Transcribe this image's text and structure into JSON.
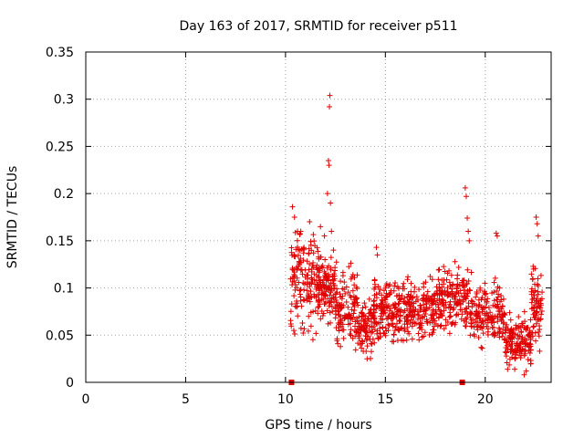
{
  "chart_data": {
    "type": "scatter",
    "title": "Day 163 of 2017, SRMTID for receiver p511",
    "xlabel": "GPS time / hours",
    "ylabel": "SRMTID / TECUs",
    "xlim": [
      0,
      23.3
    ],
    "ylim": [
      0,
      0.35
    ],
    "x_ticks": [
      "0",
      "5",
      "10",
      "15",
      "20"
    ],
    "y_ticks": [
      "0",
      "0.05",
      "0.1",
      "0.15",
      "0.2",
      "0.25",
      "0.3",
      "0.35"
    ],
    "grid": true,
    "marker": "+",
    "color": "#e00000",
    "series": [
      {
        "name": "SRMTID",
        "segments": [
          {
            "x_start": 10.25,
            "x_end": 11.6,
            "y_low": 0.04,
            "y_high": 0.17,
            "count": 150
          },
          {
            "x_start": 11.6,
            "x_end": 12.5,
            "y_low": 0.055,
            "y_high": 0.14,
            "count": 120
          },
          {
            "x_start": 12.5,
            "x_end": 13.6,
            "y_low": 0.035,
            "y_high": 0.12,
            "count": 120
          },
          {
            "x_start": 13.6,
            "x_end": 14.4,
            "y_low": 0.025,
            "y_high": 0.09,
            "count": 90
          },
          {
            "x_start": 14.4,
            "x_end": 15.6,
            "y_low": 0.035,
            "y_high": 0.11,
            "count": 140
          },
          {
            "x_start": 15.6,
            "x_end": 17.5,
            "y_low": 0.04,
            "y_high": 0.11,
            "count": 200
          },
          {
            "x_start": 17.5,
            "x_end": 19.2,
            "y_low": 0.05,
            "y_high": 0.125,
            "count": 170
          },
          {
            "x_start": 19.2,
            "x_end": 21.0,
            "y_low": 0.035,
            "y_high": 0.11,
            "count": 170
          },
          {
            "x_start": 21.0,
            "x_end": 22.3,
            "y_low": 0.01,
            "y_high": 0.07,
            "count": 150
          },
          {
            "x_start": 22.3,
            "x_end": 22.85,
            "y_low": 0.03,
            "y_high": 0.12,
            "count": 70
          }
        ],
        "peaks": [
          {
            "x": 10.35,
            "y": 0.186
          },
          {
            "x": 10.45,
            "y": 0.175
          },
          {
            "x": 10.6,
            "y": 0.16
          },
          {
            "x": 11.75,
            "y": 0.165
          },
          {
            "x": 11.95,
            "y": 0.155
          },
          {
            "x": 12.1,
            "x2": 12.1,
            "y": 0.2
          },
          {
            "x": 12.15,
            "y": 0.235
          },
          {
            "x": 12.18,
            "y": 0.23
          },
          {
            "x": 12.2,
            "y": 0.292
          },
          {
            "x": 12.22,
            "y": 0.304
          },
          {
            "x": 12.25,
            "y": 0.19
          },
          {
            "x": 12.3,
            "y": 0.16
          },
          {
            "x": 14.55,
            "y": 0.143
          },
          {
            "x": 14.6,
            "y": 0.135
          },
          {
            "x": 19.0,
            "y": 0.206
          },
          {
            "x": 19.05,
            "y": 0.197
          },
          {
            "x": 19.1,
            "y": 0.174
          },
          {
            "x": 19.15,
            "y": 0.16
          },
          {
            "x": 19.2,
            "y": 0.15
          },
          {
            "x": 20.55,
            "y": 0.158
          },
          {
            "x": 20.6,
            "y": 0.155
          },
          {
            "x": 22.55,
            "y": 0.175
          },
          {
            "x": 22.6,
            "y": 0.168
          },
          {
            "x": 22.65,
            "y": 0.155
          },
          {
            "x": 21.95,
            "y": 0.008
          },
          {
            "x": 22.05,
            "y": 0.012
          }
        ]
      }
    ],
    "axis_markers": [
      {
        "x": 10.3,
        "y": 0
      },
      {
        "x": 18.85,
        "y": 0
      }
    ]
  }
}
